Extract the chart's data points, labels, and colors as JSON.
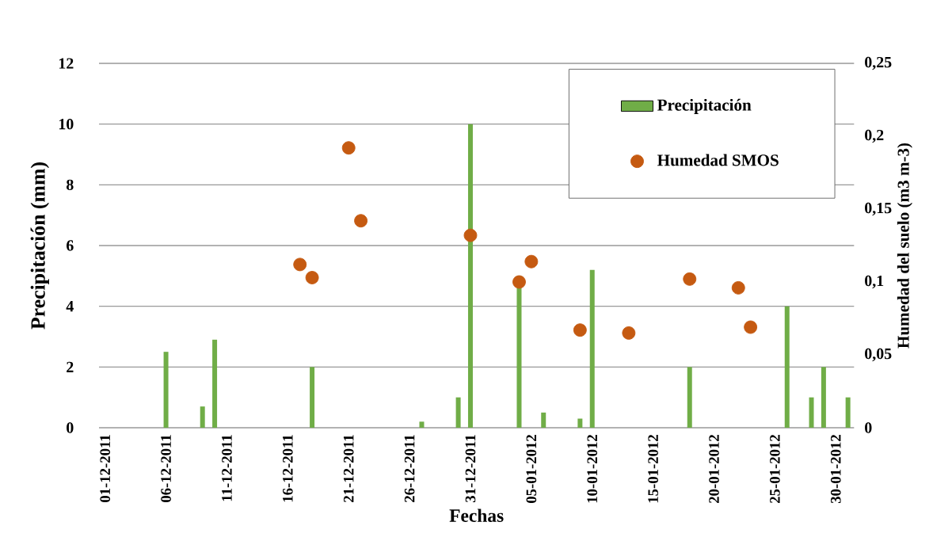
{
  "chart_data": {
    "type": "bar",
    "xlabel": "Fechas",
    "ylabel": "Precipitación (mm)",
    "y2label": "Humedad del suelo (m3 m-3)",
    "series": [
      {
        "name": "Precipitación",
        "color": "#70ad47",
        "x": [
          "2011-12-06",
          "2011-12-09",
          "2011-12-10",
          "2011-12-18",
          "2011-12-27",
          "2011-12-30",
          "2011-12-31",
          "2012-01-04",
          "2012-01-06",
          "2012-01-09",
          "2012-01-10",
          "2012-01-18",
          "2012-01-26",
          "2012-01-28",
          "2012-01-29",
          "2012-01-31"
        ],
        "values": [
          2.5,
          0.7,
          2.9,
          2,
          0.2,
          1,
          10,
          5,
          0.5,
          0.3,
          5.2,
          2,
          4,
          1,
          2,
          1
        ]
      },
      {
        "name": "Humedad SMOS",
        "type": "scatter",
        "axis": "y2",
        "color": "#c55a11",
        "x": [
          "2011-12-17",
          "2011-12-18",
          "2011-12-21",
          "2011-12-22",
          "2011-12-31",
          "2012-01-04",
          "2012-01-05",
          "2012-01-09",
          "2012-01-13",
          "2012-01-18",
          "2012-01-22",
          "2012-01-23"
        ],
        "values": [
          0.112,
          0.103,
          0.192,
          0.142,
          0.132,
          0.1,
          0.114,
          0.067,
          0.065,
          0.102,
          0.096,
          0.069
        ]
      }
    ],
    "xlim": [
      "2011-11-30T12:00",
      "2012-01-31T12:00"
    ],
    "xticks": [
      {
        "value": "2011-12-01",
        "label": "01-12-2011"
      },
      {
        "value": "2011-12-06",
        "label": "06-12-2011"
      },
      {
        "value": "2011-12-11",
        "label": "11-12-2011"
      },
      {
        "value": "2011-12-16",
        "label": "16-12-2011"
      },
      {
        "value": "2011-12-21",
        "label": "21-12-2011"
      },
      {
        "value": "2011-12-26",
        "label": "26-12-2011"
      },
      {
        "value": "2011-12-31",
        "label": "31-12-2011"
      },
      {
        "value": "2012-01-05",
        "label": "05-01-2012"
      },
      {
        "value": "2012-01-10",
        "label": "10-01-2012"
      },
      {
        "value": "2012-01-15",
        "label": "15-01-2012"
      },
      {
        "value": "2012-01-20",
        "label": "20-01-2012"
      },
      {
        "value": "2012-01-25",
        "label": "25-01-2012"
      },
      {
        "value": "2012-01-30",
        "label": "30-01-2012"
      }
    ],
    "ylim": [
      0,
      12
    ],
    "yticks": [
      0,
      2,
      4,
      6,
      8,
      10,
      12
    ],
    "y2lim": [
      0,
      0.25
    ],
    "y2ticks": [
      0,
      {
        "value": 0.05,
        "label": "0,05"
      },
      {
        "value": 0.1,
        "label": "0,1"
      },
      {
        "value": 0.15,
        "label": "0,15"
      },
      {
        "value": 0.2,
        "label": "0,2"
      },
      {
        "value": 0.25,
        "label": "0,25"
      }
    ],
    "grid": "y",
    "legend": "top right",
    "marker": "circle"
  }
}
